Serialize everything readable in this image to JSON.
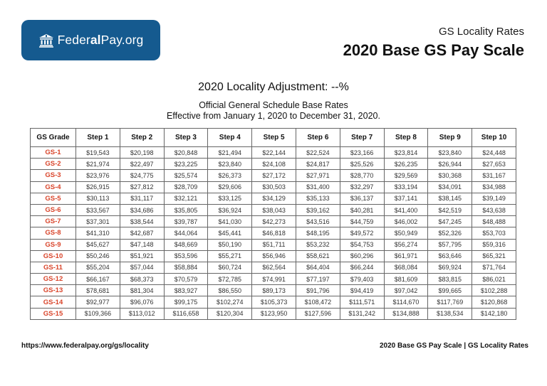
{
  "logo": {
    "text_regular_1": "Feder",
    "text_bold": "al",
    "text_regular_2": "Pay.org",
    "icon": "courthouse-icon",
    "background": "#155a8f"
  },
  "header": {
    "subtitle": "GS Locality Rates",
    "title": "2020 Base GS Pay Scale"
  },
  "locality_adjustment": "2020 Locality Adjustment: --%",
  "description": {
    "line1": "Official General Schedule Base Rates",
    "line2": "Effective from January 1, 2020 to December 31, 2020."
  },
  "table": {
    "grade_color": "#d9442a",
    "headers": [
      "GS Grade",
      "Step 1",
      "Step 2",
      "Step 3",
      "Step 4",
      "Step 5",
      "Step 6",
      "Step 7",
      "Step 8",
      "Step 9",
      "Step 10"
    ],
    "rows": [
      [
        "GS-1",
        "$19,543",
        "$20,198",
        "$20,848",
        "$21,494",
        "$22,144",
        "$22,524",
        "$23,166",
        "$23,814",
        "$23,840",
        "$24,448"
      ],
      [
        "GS-2",
        "$21,974",
        "$22,497",
        "$23,225",
        "$23,840",
        "$24,108",
        "$24,817",
        "$25,526",
        "$26,235",
        "$26,944",
        "$27,653"
      ],
      [
        "GS-3",
        "$23,976",
        "$24,775",
        "$25,574",
        "$26,373",
        "$27,172",
        "$27,971",
        "$28,770",
        "$29,569",
        "$30,368",
        "$31,167"
      ],
      [
        "GS-4",
        "$26,915",
        "$27,812",
        "$28,709",
        "$29,606",
        "$30,503",
        "$31,400",
        "$32,297",
        "$33,194",
        "$34,091",
        "$34,988"
      ],
      [
        "GS-5",
        "$30,113",
        "$31,117",
        "$32,121",
        "$33,125",
        "$34,129",
        "$35,133",
        "$36,137",
        "$37,141",
        "$38,145",
        "$39,149"
      ],
      [
        "GS-6",
        "$33,567",
        "$34,686",
        "$35,805",
        "$36,924",
        "$38,043",
        "$39,162",
        "$40,281",
        "$41,400",
        "$42,519",
        "$43,638"
      ],
      [
        "GS-7",
        "$37,301",
        "$38,544",
        "$39,787",
        "$41,030",
        "$42,273",
        "$43,516",
        "$44,759",
        "$46,002",
        "$47,245",
        "$48,488"
      ],
      [
        "GS-8",
        "$41,310",
        "$42,687",
        "$44,064",
        "$45,441",
        "$46,818",
        "$48,195",
        "$49,572",
        "$50,949",
        "$52,326",
        "$53,703"
      ],
      [
        "GS-9",
        "$45,627",
        "$47,148",
        "$48,669",
        "$50,190",
        "$51,711",
        "$53,232",
        "$54,753",
        "$56,274",
        "$57,795",
        "$59,316"
      ],
      [
        "GS-10",
        "$50,246",
        "$51,921",
        "$53,596",
        "$55,271",
        "$56,946",
        "$58,621",
        "$60,296",
        "$61,971",
        "$63,646",
        "$65,321"
      ],
      [
        "GS-11",
        "$55,204",
        "$57,044",
        "$58,884",
        "$60,724",
        "$62,564",
        "$64,404",
        "$66,244",
        "$68,084",
        "$69,924",
        "$71,764"
      ],
      [
        "GS-12",
        "$66,167",
        "$68,373",
        "$70,579",
        "$72,785",
        "$74,991",
        "$77,197",
        "$79,403",
        "$81,609",
        "$83,815",
        "$86,021"
      ],
      [
        "GS-13",
        "$78,681",
        "$81,304",
        "$83,927",
        "$86,550",
        "$89,173",
        "$91,796",
        "$94,419",
        "$97,042",
        "$99,665",
        "$102,288"
      ],
      [
        "GS-14",
        "$92,977",
        "$96,076",
        "$99,175",
        "$102,274",
        "$105,373",
        "$108,472",
        "$111,571",
        "$114,670",
        "$117,769",
        "$120,868"
      ],
      [
        "GS-15",
        "$109,366",
        "$113,012",
        "$116,658",
        "$120,304",
        "$123,950",
        "$127,596",
        "$131,242",
        "$134,888",
        "$138,534",
        "$142,180"
      ]
    ]
  },
  "footer": {
    "left": "https://www.federalpay.org/gs/locality",
    "right": "2020 Base GS Pay Scale | GS Locality Rates"
  }
}
